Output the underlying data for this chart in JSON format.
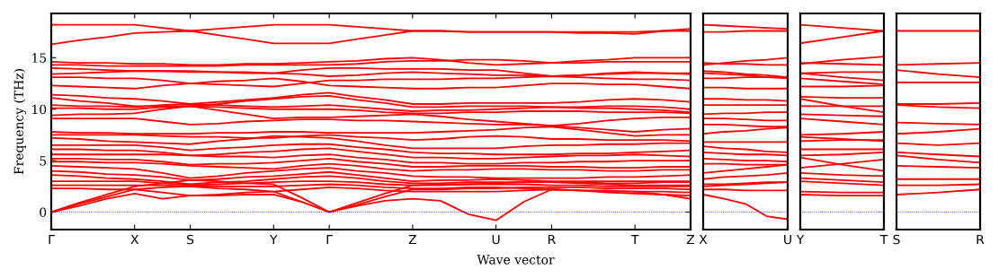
{
  "chart_data": [
    {
      "type": "line",
      "ylabel": "Frequency (THz)",
      "xlabel": "Wave vector",
      "ylim": [
        -1.7,
        19.3
      ],
      "yticks": [
        0,
        5,
        10,
        15
      ],
      "grid": false,
      "legend": false,
      "line_style": "solid",
      "marker": "none",
      "categories": [
        "Γ",
        null,
        null,
        "X",
        null,
        "S",
        null,
        null,
        "Y",
        null,
        "Γ",
        null,
        null,
        "Z",
        null,
        null,
        "U",
        null,
        "R",
        null,
        null,
        "T",
        null,
        "Z"
      ],
      "ref_lines": [
        {
          "axis": "y",
          "value": 0,
          "color": "#0000ff",
          "line_style": "dotted"
        }
      ],
      "series": [
        {
          "color": "#ff0000",
          "values": [
            18.2,
            18.2,
            18.2,
            18.2,
            17.9,
            17.6,
            17.8,
            18.0,
            18.2,
            18.2,
            18.2,
            18.0,
            17.8,
            17.6,
            17.6,
            17.5,
            17.5,
            17.5,
            17.5,
            17.5,
            17.5,
            17.5,
            17.6,
            17.6
          ]
        },
        {
          "color": "#ff0000",
          "values": [
            16.3,
            16.7,
            17.0,
            17.4,
            17.5,
            17.6,
            17.2,
            16.8,
            16.4,
            16.4,
            16.4,
            16.8,
            17.2,
            17.6,
            17.6,
            17.5,
            17.5,
            17.5,
            17.5,
            17.4,
            17.4,
            17.3,
            17.6,
            17.8
          ]
        },
        {
          "color": "#ff0000",
          "values": [
            14.6,
            14.5,
            14.5,
            14.4,
            14.4,
            14.3,
            14.3,
            14.4,
            14.4,
            14.5,
            14.6,
            14.7,
            14.9,
            15.0,
            14.8,
            14.5,
            14.3,
            14.4,
            14.5,
            14.7,
            14.8,
            15.0,
            15.0,
            15.0
          ]
        },
        {
          "color": "#ff0000",
          "values": [
            14.3,
            14.3,
            14.2,
            14.2,
            14.2,
            14.2,
            14.2,
            14.3,
            14.3,
            14.3,
            14.3,
            14.4,
            14.6,
            14.7,
            14.7,
            14.8,
            14.8,
            14.7,
            14.5,
            14.5,
            14.6,
            14.6,
            14.6,
            14.6
          ]
        },
        {
          "color": "#ff0000",
          "values": [
            14.0,
            13.9,
            13.8,
            13.7,
            13.7,
            13.7,
            13.6,
            13.6,
            13.5,
            13.8,
            14.0,
            14.0,
            13.9,
            13.9,
            13.9,
            13.8,
            13.8,
            13.5,
            13.2,
            13.3,
            13.4,
            13.5,
            13.5,
            13.5
          ]
        },
        {
          "color": "#ff0000",
          "values": [
            13.4,
            13.5,
            13.6,
            13.7,
            13.7,
            13.6,
            13.6,
            13.5,
            13.5,
            13.4,
            13.2,
            13.3,
            13.5,
            13.6,
            13.5,
            13.4,
            13.3,
            13.3,
            13.2,
            13.3,
            13.5,
            13.6,
            13.5,
            13.4
          ]
        },
        {
          "color": "#ff0000",
          "values": [
            13.1,
            13.1,
            13.0,
            13.0,
            12.8,
            12.5,
            12.4,
            12.3,
            12.2,
            12.5,
            12.8,
            12.8,
            12.9,
            12.9,
            12.9,
            13.0,
            13.0,
            13.1,
            13.2,
            13.1,
            13.0,
            12.9,
            12.9,
            12.8
          ]
        },
        {
          "color": "#ff0000",
          "values": [
            12.3,
            12.2,
            12.1,
            12.0,
            12.3,
            12.5,
            12.7,
            12.8,
            13.0,
            12.7,
            12.3,
            12.2,
            12.1,
            12.0,
            12.0,
            12.1,
            12.1,
            12.3,
            12.5,
            12.5,
            12.4,
            12.4,
            12.2,
            12.0
          ]
        },
        {
          "color": "#ff0000",
          "values": [
            11.4,
            11.3,
            11.1,
            11.0,
            10.8,
            10.5,
            10.7,
            10.9,
            11.1,
            11.4,
            11.6,
            11.2,
            10.9,
            10.5,
            10.5,
            10.6,
            10.6,
            10.6,
            10.6,
            10.7,
            10.9,
            11.0,
            10.9,
            10.7
          ]
        },
        {
          "color": "#ff0000",
          "values": [
            11.1,
            10.8,
            10.6,
            10.3,
            10.3,
            10.3,
            10.5,
            10.8,
            11.0,
            11.2,
            11.3,
            10.9,
            10.6,
            10.2,
            10.2,
            10.3,
            10.3,
            10.3,
            10.2,
            10.2,
            10.3,
            10.3,
            10.2,
            10.0
          ]
        },
        {
          "color": "#ff0000",
          "values": [
            10.4,
            10.3,
            10.3,
            10.2,
            10.4,
            10.5,
            10.4,
            10.3,
            10.2,
            10.3,
            10.4,
            10.2,
            10.0,
            9.8,
            9.9,
            9.9,
            10.0,
            10.1,
            10.2,
            10.1,
            10.1,
            10.0,
            9.9,
            9.7
          ]
        },
        {
          "color": "#ff0000",
          "values": [
            10.1,
            10.1,
            10.0,
            10.0,
            10.2,
            10.3,
            10.2,
            10.1,
            10.0,
            10.0,
            10.0,
            9.9,
            9.7,
            9.6,
            9.6,
            9.7,
            9.7,
            9.8,
            9.8,
            9.8,
            9.7,
            9.7,
            9.7,
            9.6
          ]
        },
        {
          "color": "#ff0000",
          "values": [
            9.4,
            9.5,
            9.5,
            9.6,
            10.0,
            10.3,
            9.9,
            9.5,
            9.1,
            9.2,
            9.2,
            9.3,
            9.4,
            9.5,
            9.3,
            9.0,
            8.8,
            8.6,
            8.4,
            8.6,
            8.9,
            9.1,
            9.2,
            9.2
          ]
        },
        {
          "color": "#ff0000",
          "values": [
            9.1,
            9.1,
            9.1,
            9.1,
            8.8,
            8.5,
            8.6,
            8.8,
            8.9,
            9.0,
            9.0,
            8.9,
            8.9,
            8.8,
            8.7,
            8.6,
            8.5,
            8.5,
            8.4,
            8.2,
            8.0,
            7.8,
            8.0,
            8.1
          ]
        },
        {
          "color": "#ff0000",
          "values": [
            7.8,
            7.7,
            7.7,
            7.6,
            7.6,
            7.6,
            7.7,
            7.7,
            7.8,
            7.8,
            7.7,
            7.7,
            7.7,
            7.7,
            7.8,
            7.9,
            8.0,
            8.2,
            8.3,
            8.0,
            7.7,
            7.4,
            7.5,
            7.5
          ]
        },
        {
          "color": "#ff0000",
          "values": [
            7.5,
            7.5,
            7.5,
            7.5,
            7.4,
            7.3,
            7.3,
            7.2,
            7.2,
            7.4,
            7.5,
            7.3,
            7.2,
            7.0,
            7.1,
            7.3,
            7.4,
            7.3,
            7.1,
            7.1,
            7.0,
            7.0,
            7.0,
            6.9
          ]
        },
        {
          "color": "#ff0000",
          "values": [
            7.2,
            7.1,
            6.9,
            6.8,
            6.7,
            6.6,
            6.9,
            7.1,
            7.4,
            7.3,
            7.2,
            6.9,
            6.5,
            6.2,
            6.2,
            6.2,
            6.2,
            6.4,
            6.5,
            6.5,
            6.6,
            6.6,
            6.7,
            6.7
          ]
        },
        {
          "color": "#ff0000",
          "values": [
            6.5,
            6.5,
            6.5,
            6.5,
            6.3,
            6.0,
            6.2,
            6.3,
            6.5,
            6.6,
            6.6,
            6.3,
            6.1,
            5.8,
            5.7,
            5.7,
            5.6,
            5.6,
            5.6,
            5.7,
            5.7,
            5.8,
            5.9,
            6.0
          ]
        },
        {
          "color": "#ff0000",
          "values": [
            6.1,
            6.1,
            6.0,
            6.0,
            5.8,
            5.5,
            5.6,
            5.8,
            5.9,
            6.1,
            6.2,
            5.9,
            5.6,
            5.3,
            5.3,
            5.2,
            5.2,
            5.3,
            5.4,
            5.5,
            5.5,
            5.6,
            5.5,
            5.4
          ]
        },
        {
          "color": "#ff0000",
          "values": [
            5.6,
            5.6,
            5.6,
            5.6,
            5.6,
            5.5,
            5.4,
            5.4,
            5.3,
            5.5,
            5.6,
            5.3,
            5.1,
            4.8,
            4.8,
            4.7,
            4.7,
            4.8,
            4.8,
            4.9,
            4.9,
            5.0,
            5.0,
            5.0
          ]
        },
        {
          "color": "#ff0000",
          "values": [
            5.2,
            5.2,
            5.1,
            5.1,
            4.9,
            4.6,
            4.7,
            4.7,
            4.8,
            5.0,
            5.2,
            4.9,
            4.7,
            4.4,
            4.4,
            4.5,
            4.5,
            4.5,
            4.4,
            4.4,
            4.3,
            4.3,
            4.4,
            4.4
          ]
        },
        {
          "color": "#ff0000",
          "values": [
            4.9,
            4.9,
            4.8,
            4.8,
            4.7,
            4.5,
            4.4,
            4.3,
            4.2,
            4.5,
            4.7,
            4.5,
            4.2,
            4.0,
            4.1,
            4.1,
            4.2,
            4.2,
            4.1,
            4.1,
            4.0,
            4.0,
            4.1,
            4.1
          ]
        },
        {
          "color": "#ff0000",
          "values": [
            4.5,
            4.4,
            4.3,
            4.2,
            3.8,
            3.3,
            3.5,
            3.8,
            4.0,
            4.2,
            4.3,
            4.0,
            3.8,
            3.5,
            3.4,
            3.4,
            3.3,
            3.3,
            3.3,
            3.3,
            3.4,
            3.4,
            3.5,
            3.6
          ]
        },
        {
          "color": "#ff0000",
          "values": [
            4.0,
            3.9,
            3.7,
            3.6,
            3.4,
            3.1,
            3.2,
            3.4,
            3.5,
            3.7,
            3.9,
            3.6,
            3.3,
            3.0,
            3.1,
            3.1,
            3.2,
            3.1,
            3.0,
            3.0,
            3.0,
            3.0,
            3.0,
            3.0
          ]
        },
        {
          "color": "#ff0000",
          "values": [
            3.6,
            3.5,
            3.3,
            3.2,
            3.0,
            2.7,
            2.9,
            3.0,
            3.2,
            3.4,
            3.5,
            3.3,
            3.0,
            2.8,
            2.8,
            2.9,
            2.9,
            2.9,
            2.9,
            2.9,
            2.8,
            2.8,
            2.9,
            2.9
          ]
        },
        {
          "color": "#ff0000",
          "values": [
            3.0,
            3.0,
            3.0,
            3.0,
            2.8,
            2.6,
            2.7,
            2.8,
            2.9,
            3.0,
            3.0,
            2.9,
            2.7,
            2.6,
            2.6,
            2.7,
            2.7,
            2.7,
            2.6,
            2.6,
            2.5,
            2.5,
            2.5,
            2.5
          ]
        },
        {
          "color": "#ff0000",
          "values": [
            2.6,
            2.6,
            2.6,
            2.6,
            2.6,
            2.5,
            2.5,
            2.5,
            2.5,
            2.6,
            2.7,
            2.6,
            2.4,
            2.3,
            2.3,
            2.4,
            2.4,
            2.3,
            2.2,
            2.1,
            2.1,
            2.0,
            2.0,
            1.9
          ]
        },
        {
          "color": "#ff0000",
          "values": [
            2.3,
            2.3,
            2.2,
            2.2,
            1.9,
            1.6,
            1.7,
            1.9,
            2.0,
            2.2,
            2.4,
            2.3,
            2.1,
            2.0,
            2.0,
            2.0,
            2.0,
            2.1,
            2.2,
            2.1,
            1.9,
            1.8,
            1.7,
            1.6
          ]
        },
        {
          "color": "#ff0000",
          "values": [
            0,
            0.9,
            1.7,
            2.5,
            2.8,
            3.1,
            3.0,
            2.8,
            2.7,
            1.4,
            0,
            0.9,
            1.8,
            2.6,
            2.7,
            2.7,
            2.8,
            2.9,
            2.9,
            2.8,
            2.7,
            2.6,
            2.6,
            2.6
          ]
        },
        {
          "color": "#ff0000",
          "values": [
            0,
            0.8,
            1.5,
            2.2,
            2.4,
            2.5,
            2.3,
            2.2,
            2.0,
            1.0,
            0,
            0.7,
            1.5,
            2.2,
            2.2,
            2.3,
            2.3,
            2.4,
            2.4,
            2.4,
            2.3,
            2.3,
            2.3,
            2.2
          ]
        },
        {
          "color": "#ff0000",
          "values": [
            0,
            0.6,
            1.3,
            1.8,
            1.3,
            1.6,
            1.6,
            1.7,
            1.7,
            1.0,
            0,
            0.6,
            1.1,
            1.3,
            1.1,
            -0.2,
            -0.8,
            1.0,
            2.2,
            2.1,
            2.0,
            2.0,
            1.7,
            1.3
          ]
        }
      ]
    },
    {
      "type": "line",
      "ylim": [
        -1.7,
        19.3
      ],
      "tick_labels": "x",
      "grid": false,
      "legend": false,
      "line_style": "solid",
      "marker": "none",
      "categories": [
        "X",
        null,
        null,
        null,
        "U"
      ],
      "ref_lines": [
        {
          "axis": "y",
          "value": 0,
          "color": "#0000ff",
          "line_style": "dotted"
        }
      ],
      "series": [
        {
          "color": "#ff0000",
          "values": [
            18.2,
            18.1,
            18.0,
            17.9,
            17.8
          ]
        },
        {
          "color": "#ff0000",
          "values": [
            17.5,
            17.5,
            17.6,
            17.6,
            17.6
          ]
        },
        {
          "color": "#ff0000",
          "values": [
            14.3,
            14.5,
            14.7,
            14.8,
            15.0
          ]
        },
        {
          "color": "#ff0000",
          "values": [
            14.5,
            14.4,
            14.4,
            14.3,
            14.3
          ]
        },
        {
          "color": "#ff0000",
          "values": [
            13.7,
            13.6,
            13.4,
            13.3,
            13.1
          ]
        },
        {
          "color": "#ff0000",
          "values": [
            13.5,
            13.4,
            13.3,
            13.1,
            13.0
          ]
        },
        {
          "color": "#ff0000",
          "values": [
            13.0,
            13.0,
            13.1,
            13.1,
            13.1
          ]
        },
        {
          "color": "#ff0000",
          "values": [
            12.1,
            12.1,
            12.0,
            12.0,
            12.0
          ]
        },
        {
          "color": "#ff0000",
          "values": [
            11.0,
            11.0,
            10.9,
            10.9,
            10.8
          ]
        },
        {
          "color": "#ff0000",
          "values": [
            10.4,
            10.4,
            10.4,
            10.4,
            10.4
          ]
        },
        {
          "color": "#ff0000",
          "values": [
            9.5,
            9.6,
            9.6,
            9.7,
            9.7
          ]
        },
        {
          "color": "#ff0000",
          "values": [
            9.1,
            9.1,
            9.0,
            8.9,
            8.9
          ]
        },
        {
          "color": "#ff0000",
          "values": [
            8.5,
            8.5,
            8.4,
            8.3,
            8.3
          ]
        },
        {
          "color": "#ff0000",
          "values": [
            7.6,
            7.8,
            7.9,
            8.1,
            8.2
          ]
        },
        {
          "color": "#ff0000",
          "values": [
            6.8,
            6.8,
            6.8,
            6.8,
            6.8
          ]
        },
        {
          "color": "#ff0000",
          "values": [
            6.4,
            6.2,
            6.1,
            5.9,
            5.8
          ]
        },
        {
          "color": "#ff0000",
          "values": [
            5.8,
            5.7,
            5.6,
            5.6,
            5.5
          ]
        },
        {
          "color": "#ff0000",
          "values": [
            5.2,
            5.1,
            5.0,
            5.0,
            4.9
          ]
        },
        {
          "color": "#ff0000",
          "values": [
            4.7,
            4.7,
            4.6,
            4.6,
            4.6
          ]
        },
        {
          "color": "#ff0000",
          "values": [
            3.8,
            4.0,
            4.2,
            4.4,
            4.6
          ]
        },
        {
          "color": "#ff0000",
          "values": [
            3.2,
            3.4,
            3.5,
            3.6,
            3.8
          ]
        },
        {
          "color": "#ff0000",
          "values": [
            2.7,
            2.7,
            2.8,
            2.9,
            2.9
          ]
        },
        {
          "color": "#ff0000",
          "values": [
            2.2,
            2.2,
            2.1,
            2.1,
            2.1
          ]
        },
        {
          "color": "#ff0000",
          "values": [
            2.5,
            2.6,
            2.7,
            2.8,
            2.9
          ]
        },
        {
          "color": "#ff0000",
          "values": [
            1.7,
            1.3,
            0.8,
            -0.4,
            -0.7
          ]
        }
      ]
    },
    {
      "type": "line",
      "ylim": [
        -1.7,
        19.3
      ],
      "tick_labels": "x",
      "grid": false,
      "legend": false,
      "line_style": "solid",
      "marker": "none",
      "categories": [
        "Y",
        null,
        "T"
      ],
      "ref_lines": [
        {
          "axis": "y",
          "value": 0,
          "color": "#0000ff",
          "line_style": "dotted"
        }
      ],
      "series": [
        {
          "color": "#ff0000",
          "values": [
            18.2,
            17.9,
            17.6
          ]
        },
        {
          "color": "#ff0000",
          "values": [
            16.4,
            17.0,
            17.6
          ]
        },
        {
          "color": "#ff0000",
          "values": [
            14.4,
            14.8,
            15.1
          ]
        },
        {
          "color": "#ff0000",
          "values": [
            14.5,
            14.4,
            14.3
          ]
        },
        {
          "color": "#ff0000",
          "values": [
            13.5,
            13.6,
            13.6
          ]
        },
        {
          "color": "#ff0000",
          "values": [
            13.5,
            13.1,
            12.8
          ]
        },
        {
          "color": "#ff0000",
          "values": [
            13.0,
            12.7,
            12.4
          ]
        },
        {
          "color": "#ff0000",
          "values": [
            12.2,
            12.2,
            12.3
          ]
        },
        {
          "color": "#ff0000",
          "values": [
            11.2,
            11.1,
            11.1
          ]
        },
        {
          "color": "#ff0000",
          "values": [
            11.0,
            10.3,
            9.7
          ]
        },
        {
          "color": "#ff0000",
          "values": [
            10.3,
            10.3,
            10.3
          ]
        },
        {
          "color": "#ff0000",
          "values": [
            9.5,
            9.4,
            9.3
          ]
        },
        {
          "color": "#ff0000",
          "values": [
            9.1,
            8.8,
            8.5
          ]
        },
        {
          "color": "#ff0000",
          "values": [
            7.5,
            7.6,
            7.8
          ]
        },
        {
          "color": "#ff0000",
          "values": [
            7.3,
            7.1,
            6.9
          ]
        },
        {
          "color": "#ff0000",
          "values": [
            6.9,
            7.0,
            7.0
          ]
        },
        {
          "color": "#ff0000",
          "values": [
            6.1,
            6.1,
            6.1
          ]
        },
        {
          "color": "#ff0000",
          "values": [
            5.5,
            5.6,
            5.8
          ]
        },
        {
          "color": "#ff0000",
          "values": [
            5.3,
            4.6,
            4.0
          ]
        },
        {
          "color": "#ff0000",
          "values": [
            4.3,
            4.7,
            5.1
          ]
        },
        {
          "color": "#ff0000",
          "values": [
            3.8,
            3.6,
            3.5
          ]
        },
        {
          "color": "#ff0000",
          "values": [
            3.3,
            3.1,
            2.9
          ]
        },
        {
          "color": "#ff0000",
          "values": [
            3.0,
            2.8,
            2.6
          ]
        },
        {
          "color": "#ff0000",
          "values": [
            2.0,
            1.9,
            1.9
          ]
        },
        {
          "color": "#ff0000",
          "values": [
            1.7,
            1.6,
            1.6
          ]
        }
      ]
    },
    {
      "type": "line",
      "ylim": [
        -1.7,
        19.3
      ],
      "tick_labels": "x",
      "grid": false,
      "legend": false,
      "line_style": "solid",
      "marker": "none",
      "categories": [
        "S",
        null,
        "R"
      ],
      "ref_lines": [
        {
          "axis": "y",
          "value": 0,
          "color": "#0000ff",
          "line_style": "dotted"
        }
      ],
      "series": [
        {
          "color": "#ff0000",
          "values": [
            17.6,
            17.6,
            17.6
          ]
        },
        {
          "color": "#ff0000",
          "values": [
            14.3,
            14.4,
            14.5
          ]
        },
        {
          "color": "#ff0000",
          "values": [
            13.8,
            13.4,
            13.1
          ]
        },
        {
          "color": "#ff0000",
          "values": [
            12.6,
            12.6,
            12.6
          ]
        },
        {
          "color": "#ff0000",
          "values": [
            10.5,
            10.5,
            10.6
          ]
        },
        {
          "color": "#ff0000",
          "values": [
            10.4,
            10.2,
            10.1
          ]
        },
        {
          "color": "#ff0000",
          "values": [
            8.7,
            8.6,
            8.5
          ]
        },
        {
          "color": "#ff0000",
          "values": [
            7.6,
            7.8,
            8.1
          ]
        },
        {
          "color": "#ff0000",
          "values": [
            6.7,
            6.5,
            6.7
          ]
        },
        {
          "color": "#ff0000",
          "values": [
            5.8,
            5.6,
            5.4
          ]
        },
        {
          "color": "#ff0000",
          "values": [
            5.5,
            5.1,
            4.8
          ]
        },
        {
          "color": "#ff0000",
          "values": [
            4.5,
            4.4,
            4.3
          ]
        },
        {
          "color": "#ff0000",
          "values": [
            3.2,
            3.2,
            3.2
          ]
        },
        {
          "color": "#ff0000",
          "values": [
            2.6,
            2.6,
            2.7
          ]
        },
        {
          "color": "#ff0000",
          "values": [
            1.7,
            1.9,
            2.2
          ]
        }
      ]
    }
  ]
}
